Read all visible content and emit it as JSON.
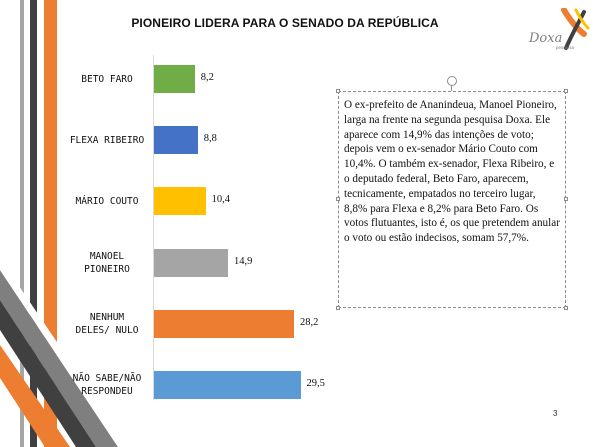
{
  "slide": {
    "title": "PIONEIRO LIDERA PARA O SENADO DA REPÚBLICA",
    "logo": {
      "word": "Doxa",
      "sub": "pesquisa"
    },
    "body_text": "O ex-prefeito de Ananindeua, Manoel Pioneiro, larga na frente na segunda pesquisa Doxa. Ele aparece com 14,9% das intenções de voto; depois vem o ex-senador Mário Couto com 10,4%. O também ex-senador, Flexa Ribeiro, e o deputado federal, Beto Faro, aparecem, tecnicamente, empatados no terceiro lugar, 8,8% para Flexa e 8,2% para Beto Faro. Os votos flutuantes, isto é, os que pretendem anular o voto ou estão indecisos, somam 57,7%.",
    "page_number": "3"
  },
  "chart_data": {
    "type": "bar",
    "orientation": "horizontal",
    "categories": [
      "BETO FARO",
      "FLEXA RIBEIRO",
      "MÁRIO COUTO",
      "MANOEL PIONEIRO",
      "NENHUM DELES/ NULO",
      "NÃO SABE/NÃO RESPONDEU"
    ],
    "category_lines": [
      [
        "BETO FARO"
      ],
      [
        "FLEXA RIBEIRO"
      ],
      [
        "MÁRIO COUTO"
      ],
      [
        "MANOEL",
        "PIONEIRO"
      ],
      [
        "NENHUM",
        "DELES/ NULO"
      ],
      [
        "NÃO SABE/NÃO",
        "RESPONDEU"
      ]
    ],
    "values": [
      8.2,
      8.8,
      10.4,
      14.9,
      28.2,
      29.5
    ],
    "value_labels": [
      "8,2",
      "8,8",
      "10,4",
      "14,9",
      "28,2",
      "29,5"
    ],
    "colors": [
      "#70ad47",
      "#4472c4",
      "#ffc000",
      "#a5a5a5",
      "#ed7d31",
      "#5b9bd5"
    ],
    "title": "",
    "xlabel": "",
    "ylabel": "",
    "xlim": [
      0,
      30
    ],
    "grid": false,
    "legend": "none"
  },
  "theme": {
    "accent_orange": "#ed7d31",
    "accent_dark": "#404040",
    "accent_gray": "#7f7f7f"
  }
}
